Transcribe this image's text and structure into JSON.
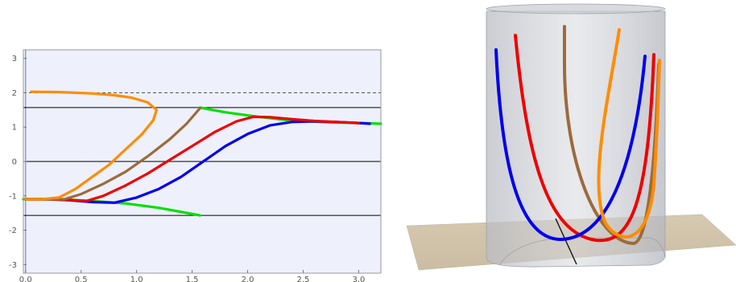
{
  "chart_data": [
    {
      "type": "line",
      "title": "",
      "xlabel": "",
      "ylabel": "",
      "xlim": [
        -0.02,
        3.2
      ],
      "ylim": [
        -3.25,
        3.25
      ],
      "background": "#eef0fb",
      "grid": false,
      "x_ticks": [
        "0.0",
        "0.5",
        "1.0",
        "1.5",
        "2.0",
        "2.5",
        "3.0"
      ],
      "x_tick_values": [
        0.0,
        0.5,
        1.0,
        1.5,
        2.0,
        2.5,
        3.0
      ],
      "y_ticks": [
        "-3",
        "-2",
        "-1",
        "0",
        "1",
        "2",
        "3"
      ],
      "y_tick_values": [
        -3,
        -2,
        -1,
        0,
        1,
        2,
        3
      ],
      "reference_lines": [
        {
          "y": 1.5708,
          "style": "solid",
          "color": "#000000"
        },
        {
          "y": 0,
          "style": "solid",
          "color": "#000000"
        },
        {
          "y": -1.5708,
          "style": "solid",
          "color": "#000000"
        },
        {
          "y": 2.0,
          "style": "dashed",
          "color": "#555555"
        }
      ],
      "series": [
        {
          "color": "#00e000",
          "points": [
            [
              -0.02,
              -1.1
            ],
            [
              0.3,
              -1.1
            ],
            [
              0.6,
              -1.15
            ],
            [
              0.9,
              -1.22
            ],
            [
              1.2,
              -1.35
            ],
            [
              1.5708,
              -1.57
            ]
          ]
        },
        {
          "color": "#00e000",
          "points": [
            [
              1.5708,
              1.57
            ],
            [
              1.8,
              1.43
            ],
            [
              2.1,
              1.3
            ],
            [
              2.4,
              1.19
            ],
            [
              2.7,
              1.14
            ],
            [
              3.0,
              1.12
            ],
            [
              3.2,
              1.1
            ]
          ]
        },
        {
          "color": "#0000ee",
          "points": [
            [
              0.0,
              -1.1
            ],
            [
              0.2,
              -1.1
            ],
            [
              0.4,
              -1.13
            ],
            [
              0.6,
              -1.18
            ],
            [
              0.8,
              -1.2
            ],
            [
              1.0,
              -1.05
            ],
            [
              1.2,
              -0.8
            ],
            [
              1.4,
              -0.45
            ],
            [
              1.6,
              0.0
            ],
            [
              1.8,
              0.45
            ],
            [
              2.0,
              0.8
            ],
            [
              2.2,
              1.05
            ],
            [
              2.4,
              1.15
            ],
            [
              2.6,
              1.17
            ],
            [
              2.8,
              1.15
            ],
            [
              3.0,
              1.12
            ],
            [
              3.1,
              1.1
            ]
          ]
        },
        {
          "color": "#ee0000",
          "points": [
            [
              0.0,
              -1.1
            ],
            [
              0.2,
              -1.1
            ],
            [
              0.4,
              -1.12
            ],
            [
              0.55,
              -1.15
            ],
            [
              0.7,
              -1.0
            ],
            [
              0.9,
              -0.7
            ],
            [
              1.1,
              -0.35
            ],
            [
              1.3,
              0.05
            ],
            [
              1.5,
              0.45
            ],
            [
              1.7,
              0.85
            ],
            [
              1.9,
              1.17
            ],
            [
              2.05,
              1.3
            ],
            [
              2.2,
              1.29
            ],
            [
              2.4,
              1.23
            ],
            [
              2.6,
              1.18
            ],
            [
              2.8,
              1.15
            ],
            [
              3.0,
              1.12
            ]
          ]
        },
        {
          "color": "#9c6a3c",
          "points": [
            [
              0.0,
              -1.1
            ],
            [
              0.2,
              -1.1
            ],
            [
              0.35,
              -1.1
            ],
            [
              0.5,
              -0.95
            ],
            [
              0.7,
              -0.65
            ],
            [
              0.9,
              -0.3
            ],
            [
              1.1,
              0.15
            ],
            [
              1.3,
              0.65
            ],
            [
              1.45,
              1.1
            ],
            [
              1.5708,
              1.55
            ]
          ]
        },
        {
          "color": "#ff8c00",
          "points": [
            [
              0.0,
              -1.1
            ],
            [
              0.15,
              -1.1
            ],
            [
              0.3,
              -1.05
            ],
            [
              0.45,
              -0.8
            ],
            [
              0.6,
              -0.45
            ],
            [
              0.75,
              -0.1
            ],
            [
              0.9,
              0.35
            ],
            [
              1.05,
              0.8
            ],
            [
              1.15,
              1.2
            ],
            [
              1.18,
              1.5
            ],
            [
              1.1,
              1.72
            ],
            [
              0.95,
              1.86
            ],
            [
              0.8,
              1.93
            ],
            [
              0.6,
              1.98
            ],
            [
              0.3,
              2.02
            ],
            [
              0.05,
              2.03
            ]
          ]
        }
      ]
    },
    {
      "type": "3d-surface",
      "title": "",
      "description_elements": [
        "translucent gray cylinder",
        "beige ground plane",
        "black axis segment"
      ],
      "series": [
        {
          "color": "#0000ee"
        },
        {
          "color": "#ee0000"
        },
        {
          "color": "#9c6a3c"
        },
        {
          "color": "#ff8c00"
        }
      ]
    }
  ]
}
